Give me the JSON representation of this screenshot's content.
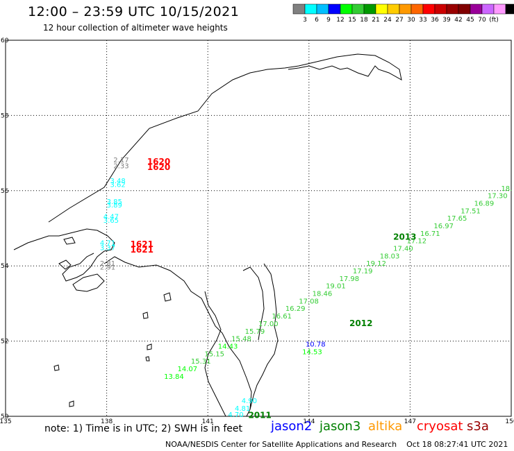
{
  "header": {
    "title": "12:00 – 23:59 UTC 10/15/2021",
    "subtitle": "12 hour collection of altimeter wave heights"
  },
  "colorbar": {
    "colors": [
      "#808080",
      "#00ffff",
      "#00bfff",
      "#0000ff",
      "#00ff00",
      "#33cc33",
      "#009900",
      "#ffff00",
      "#ffcc00",
      "#ff9900",
      "#ff6600",
      "#ff0000",
      "#cc0000",
      "#990000",
      "#800000",
      "#990099",
      "#cc66ff",
      "#ff99ff",
      "#000000"
    ],
    "labels": [
      "3",
      "6",
      "9",
      "12",
      "15",
      "18",
      "21",
      "24",
      "27",
      "30",
      "33",
      "36",
      "39",
      "42",
      "45",
      "70",
      "(ft)"
    ]
  },
  "map": {
    "lon_range": [
      135,
      150
    ],
    "lat_range": [
      50,
      60
    ],
    "lon_ticks": [
      "135",
      "138",
      "141",
      "144",
      "147",
      "150"
    ],
    "lat_ticks": [
      "60",
      "58",
      "56",
      "54",
      "52",
      "50"
    ]
  },
  "passes": [
    {
      "label": "1620",
      "color": "#ff0000",
      "lon": 139.2,
      "lat": 56.7
    },
    {
      "label": "1620",
      "color": "#ff0000",
      "lon": 139.2,
      "lat": 56.55
    },
    {
      "label": "1621",
      "color": "#ff0000",
      "lon": 138.7,
      "lat": 54.5
    },
    {
      "label": "1621",
      "color": "#ff0000",
      "lon": 138.7,
      "lat": 54.35
    },
    {
      "label": "2013",
      "color": "#008000",
      "lon": 146.5,
      "lat": 54.7
    },
    {
      "label": "2012",
      "color": "#008000",
      "lon": 145.2,
      "lat": 52.4
    },
    {
      "label": "2011",
      "color": "#008000",
      "lon": 142.2,
      "lat": 49.95
    }
  ],
  "points": [
    {
      "v": "2.17",
      "color": "#808080",
      "lon": 138.2,
      "lat": 56.75
    },
    {
      "v": "2.33",
      "color": "#808080",
      "lon": 138.2,
      "lat": 56.6
    },
    {
      "v": "3.48",
      "color": "#00ffff",
      "lon": 138.1,
      "lat": 56.2
    },
    {
      "v": "3.62",
      "color": "#00ffff",
      "lon": 138.1,
      "lat": 56.1
    },
    {
      "v": "3.85",
      "color": "#00ffff",
      "lon": 138.0,
      "lat": 55.65
    },
    {
      "v": "3.89",
      "color": "#00ffff",
      "lon": 138.0,
      "lat": 55.55
    },
    {
      "v": "4.47",
      "color": "#00ffff",
      "lon": 137.9,
      "lat": 55.25
    },
    {
      "v": "3.65",
      "color": "#00ffff",
      "lon": 137.9,
      "lat": 55.15
    },
    {
      "v": "4.71",
      "color": "#00ffff",
      "lon": 137.8,
      "lat": 54.55
    },
    {
      "v": "3.37",
      "color": "#00ffff",
      "lon": 137.8,
      "lat": 54.42
    },
    {
      "v": "2.81",
      "color": "#808080",
      "lon": 137.8,
      "lat": 54.0
    },
    {
      "v": "2.91",
      "color": "#808080",
      "lon": 137.8,
      "lat": 53.9
    },
    {
      "v": "18.",
      "color": "#33cc33",
      "lon": 149.7,
      "lat": 56.0
    },
    {
      "v": "17.30",
      "color": "#33cc33",
      "lon": 149.3,
      "lat": 55.8
    },
    {
      "v": "16.89",
      "color": "#33cc33",
      "lon": 148.9,
      "lat": 55.6
    },
    {
      "v": "17.51",
      "color": "#33cc33",
      "lon": 148.5,
      "lat": 55.4
    },
    {
      "v": "17.65",
      "color": "#33cc33",
      "lon": 148.1,
      "lat": 55.2
    },
    {
      "v": "16.97",
      "color": "#33cc33",
      "lon": 147.7,
      "lat": 55.0
    },
    {
      "v": "16.71",
      "color": "#33cc33",
      "lon": 147.3,
      "lat": 54.8
    },
    {
      "v": "17.12",
      "color": "#33cc33",
      "lon": 146.9,
      "lat": 54.6
    },
    {
      "v": "17.40",
      "color": "#33cc33",
      "lon": 146.5,
      "lat": 54.4
    },
    {
      "v": "18.03",
      "color": "#33cc33",
      "lon": 146.1,
      "lat": 54.2
    },
    {
      "v": "19.12",
      "color": "#33cc33",
      "lon": 145.7,
      "lat": 54.0
    },
    {
      "v": "17.19",
      "color": "#33cc33",
      "lon": 145.3,
      "lat": 53.8
    },
    {
      "v": "17.98",
      "color": "#33cc33",
      "lon": 144.9,
      "lat": 53.6
    },
    {
      "v": "19.01",
      "color": "#33cc33",
      "lon": 144.5,
      "lat": 53.4
    },
    {
      "v": "18.46",
      "color": "#33cc33",
      "lon": 144.1,
      "lat": 53.2
    },
    {
      "v": "17.08",
      "color": "#33cc33",
      "lon": 143.7,
      "lat": 53.0
    },
    {
      "v": "16.29",
      "color": "#33cc33",
      "lon": 143.3,
      "lat": 52.8
    },
    {
      "v": "16.61",
      "color": "#33cc33",
      "lon": 142.9,
      "lat": 52.6
    },
    {
      "v": "17.00",
      "color": "#33cc33",
      "lon": 142.5,
      "lat": 52.4
    },
    {
      "v": "15.79",
      "color": "#33cc33",
      "lon": 142.1,
      "lat": 52.2
    },
    {
      "v": "15.48",
      "color": "#33cc33",
      "lon": 141.7,
      "lat": 52.0
    },
    {
      "v": "14.43",
      "color": "#00ff00",
      "lon": 141.3,
      "lat": 51.8
    },
    {
      "v": "15.15",
      "color": "#33cc33",
      "lon": 140.9,
      "lat": 51.6
    },
    {
      "v": "15.31",
      "color": "#33cc33",
      "lon": 140.5,
      "lat": 51.4
    },
    {
      "v": "14.07",
      "color": "#00ff00",
      "lon": 140.1,
      "lat": 51.2
    },
    {
      "v": "13.84",
      "color": "#00ff00",
      "lon": 139.7,
      "lat": 51.0
    },
    {
      "v": "10.78",
      "color": "#0000ff",
      "lon": 143.9,
      "lat": 51.85
    },
    {
      "v": "14.53",
      "color": "#00ff00",
      "lon": 143.8,
      "lat": 51.65
    },
    {
      "v": "4.90",
      "color": "#00ffff",
      "lon": 142.0,
      "lat": 50.35
    },
    {
      "v": "4.81",
      "color": "#00ffff",
      "lon": 141.8,
      "lat": 50.15
    },
    {
      "v": "4.70",
      "color": "#00ffff",
      "lon": 141.6,
      "lat": 49.98
    }
  ],
  "note": "note: 1) Time is in UTC; 2) SWH is in feet",
  "satellites": [
    {
      "name": "jason2",
      "color": "#0000ff"
    },
    {
      "name": "jason3",
      "color": "#008000"
    },
    {
      "name": "altika",
      "color": "#ff9900"
    },
    {
      "name": "cryosat",
      "color": "#ff0000"
    },
    {
      "name": "s3a",
      "color": "#990000"
    }
  ],
  "credit": "NOAA/NESDIS Center for Satellite Applications and Research",
  "timestamp": "Oct 18 08:27:41 UTC 2021"
}
